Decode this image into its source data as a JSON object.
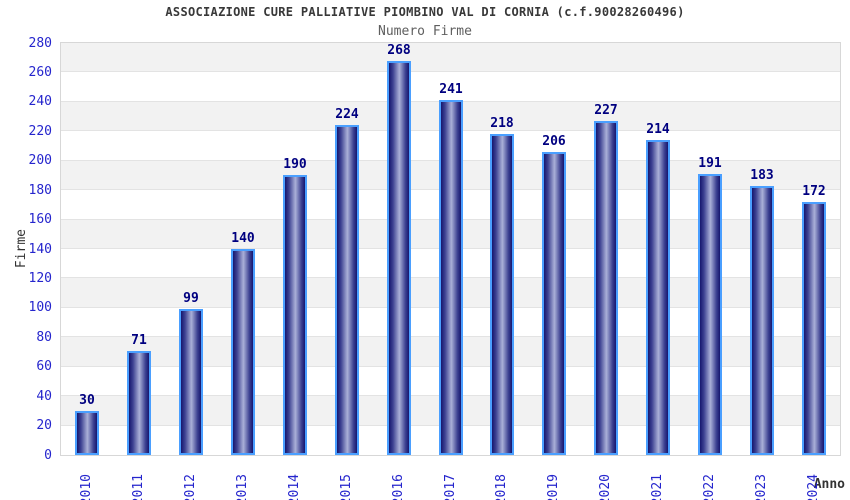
{
  "chart_data": {
    "type": "bar",
    "title": "ASSOCIAZIONE CURE PALLIATIVE PIOMBINO VAL DI CORNIA (c.f.90028260496)",
    "subtitle": "Numero Firme",
    "xlabel": "Anno",
    "ylabel": "Firme",
    "categories": [
      "2010",
      "2011",
      "2012",
      "2013",
      "2014",
      "2015",
      "2016",
      "2017",
      "2018",
      "2019",
      "2020",
      "2021",
      "2022",
      "2023",
      "2024"
    ],
    "values": [
      30,
      71,
      99,
      140,
      190,
      224,
      268,
      241,
      218,
      206,
      227,
      214,
      191,
      183,
      172
    ],
    "ylim": [
      0,
      280
    ],
    "ytick_step": 20,
    "grid": "horizontal gridlines every 20 units with alternating shaded bands",
    "legend": "none",
    "colors": {
      "bar_gradient_dark": "#16166e",
      "bar_gradient_mid": "#3d4292",
      "bar_gradient_light": "#aab0d8",
      "bar_border": "#4a9fff",
      "value_label": "#000080",
      "axis_tick_label": "#2525cd",
      "band_fill": "#f2f2f2",
      "gridline": "#e3e3e3",
      "plot_border": "#d7d7d7",
      "title_text": "#383838",
      "subtitle_text": "#5f5f5f",
      "axis_title_text": "#333333"
    }
  }
}
